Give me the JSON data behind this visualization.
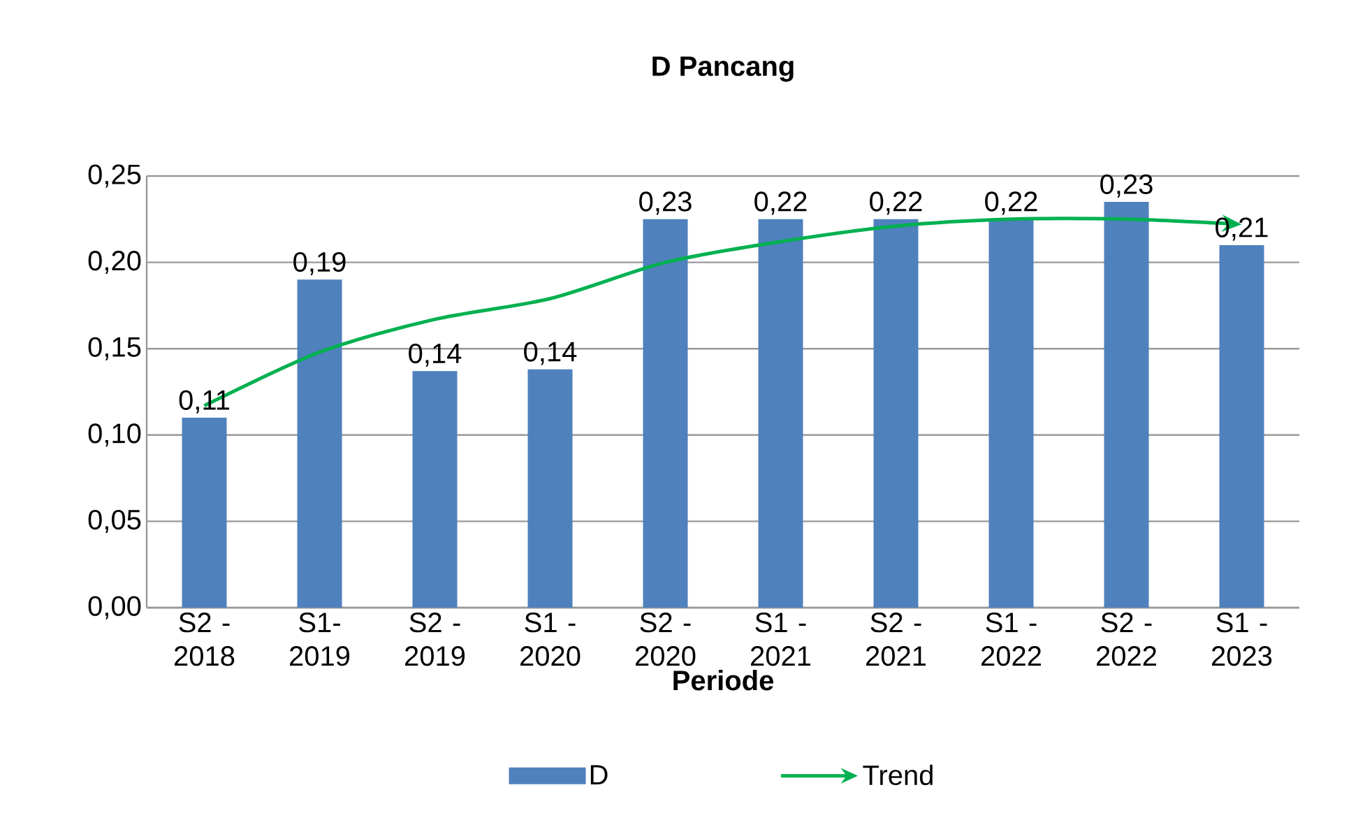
{
  "chart_data": {
    "type": "bar",
    "title": "D Pancang",
    "xlabel": "Periode",
    "categories": [
      "S2 - 2018",
      "S1- 2019",
      "S2 - 2019",
      "S1 - 2020",
      "S2 - 2020",
      "S1 - 2021",
      "S2 - 2021",
      "S1 - 2022",
      "S2 - 2022",
      "S1 - 2023"
    ],
    "series": [
      {
        "name": "D",
        "color": "#4f81bd",
        "values": [
          0.11,
          0.19,
          0.137,
          0.138,
          0.225,
          0.225,
          0.225,
          0.225,
          0.235,
          0.21
        ],
        "value_labels": [
          "0,11",
          "0,19",
          "0,14",
          "0,14",
          "0,23",
          "0,22",
          "0,22",
          "0,22",
          "0,23",
          "0,21"
        ]
      },
      {
        "name": "Trend",
        "type": "line",
        "color": "#00b050",
        "values": [
          0.117,
          0.148,
          0.167,
          0.179,
          0.2,
          0.212,
          0.221,
          0.225,
          0.225,
          0.222
        ]
      }
    ],
    "ylim": [
      0,
      0.25
    ],
    "yticks": [
      {
        "value": 0,
        "label": "0,00"
      },
      {
        "value": 0.05,
        "label": "0,05"
      },
      {
        "value": 0.1,
        "label": "0,10"
      },
      {
        "value": 0.15,
        "label": "0,15"
      },
      {
        "value": 0.2,
        "label": "0,20"
      },
      {
        "value": 0.25,
        "label": "0,25"
      }
    ],
    "grid": "y",
    "legend": "bottom"
  }
}
